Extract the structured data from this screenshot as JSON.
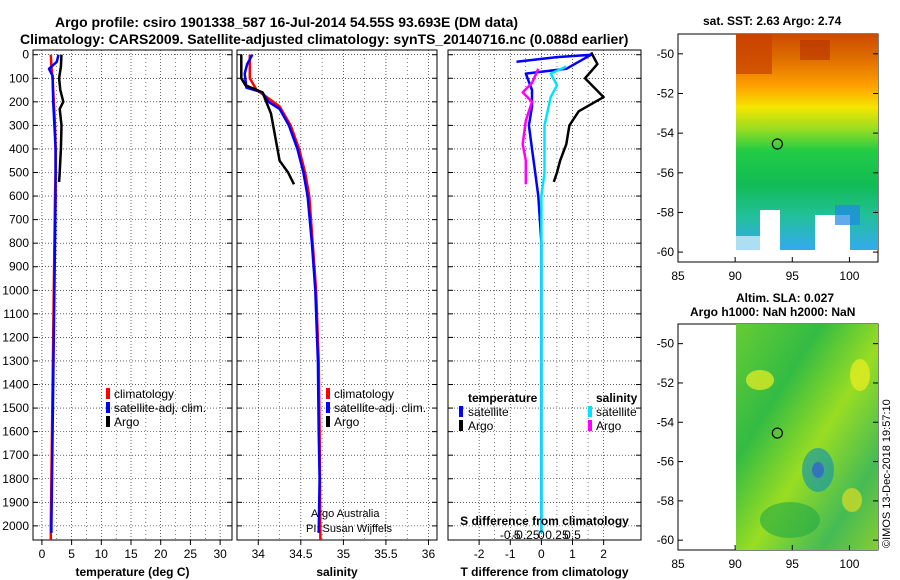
{
  "header": {
    "line1": "Argo profile: csiro 1901338_587 16-Jul-2014 54.55S 93.693E (DM data)",
    "line2": "Climatology: CARS2009. Satellite-adjusted climatology: synTS_20140716.nc (0.088d earlier)"
  },
  "depth_axis": {
    "ticks": [
      0,
      100,
      200,
      300,
      400,
      500,
      600,
      700,
      800,
      900,
      1000,
      1100,
      1200,
      1300,
      1400,
      1500,
      1600,
      1700,
      1800,
      1900,
      2000
    ],
    "range": [
      -20,
      2060
    ]
  },
  "chart_data": [
    {
      "type": "line",
      "id": "temperature",
      "xlabel": "temperature (deg C)",
      "xlim": [
        -1.5,
        32
      ],
      "xticks": [
        0,
        5,
        10,
        15,
        20,
        25,
        30
      ],
      "xtick_labels": [
        "0",
        "5",
        "10",
        "15",
        "20",
        "25",
        "30"
      ],
      "legend": [
        "climatology",
        "satellite-adj. clim.",
        "Argo"
      ],
      "series": [
        {
          "name": "climatology",
          "color": "#ff0000",
          "points": [
            [
              1.5,
              0
            ],
            [
              1.6,
              50
            ],
            [
              1.8,
              100
            ],
            [
              2.0,
              200
            ],
            [
              2.2,
              300
            ],
            [
              2.3,
              400
            ],
            [
              2.3,
              500
            ],
            [
              2.2,
              600
            ],
            [
              2.1,
              800
            ],
            [
              2.0,
              1000
            ],
            [
              1.9,
              1200
            ],
            [
              1.8,
              1400
            ],
            [
              1.7,
              1600
            ],
            [
              1.6,
              1800
            ],
            [
              1.5,
              2000
            ],
            [
              1.5,
              2060
            ]
          ]
        },
        {
          "name": "satellite-adj. clim.",
          "color": "#0000ff",
          "points": [
            [
              2.8,
              0
            ],
            [
              2.5,
              30
            ],
            [
              1.2,
              60
            ],
            [
              1.8,
              90
            ],
            [
              1.9,
              200
            ],
            [
              2.1,
              300
            ],
            [
              2.3,
              400
            ],
            [
              2.3,
              500
            ],
            [
              2.3,
              600
            ],
            [
              2.2,
              800
            ],
            [
              2.1,
              1000
            ],
            [
              2.0,
              1200
            ],
            [
              1.9,
              1400
            ],
            [
              1.8,
              1600
            ],
            [
              1.7,
              1800
            ],
            [
              1.6,
              2000
            ],
            [
              1.6,
              2030
            ]
          ]
        },
        {
          "name": "Argo",
          "color": "#000000",
          "points": [
            [
              3.3,
              0
            ],
            [
              3.2,
              50
            ],
            [
              2.9,
              100
            ],
            [
              3.1,
              150
            ],
            [
              3.6,
              200
            ],
            [
              3.0,
              230
            ],
            [
              3.3,
              300
            ],
            [
              3.2,
              400
            ],
            [
              3.0,
              500
            ],
            [
              2.9,
              540
            ]
          ]
        }
      ]
    },
    {
      "type": "line",
      "id": "salinity",
      "xlabel": "salinity",
      "xlim": [
        33.75,
        36.1
      ],
      "xticks": [
        34,
        34.5,
        35,
        35.5,
        36
      ],
      "xtick_labels": [
        "34",
        "34.5",
        "35",
        "35.5",
        "36"
      ],
      "legend": [
        "climatology",
        "satellite-adj. clim.",
        "Argo"
      ],
      "series": [
        {
          "name": "climatology",
          "color": "#ff0000",
          "points": [
            [
              33.9,
              0
            ],
            [
              33.9,
              100
            ],
            [
              33.98,
              150
            ],
            [
              34.1,
              180
            ],
            [
              34.25,
              220
            ],
            [
              34.38,
              300
            ],
            [
              34.48,
              400
            ],
            [
              34.55,
              500
            ],
            [
              34.6,
              600
            ],
            [
              34.64,
              800
            ],
            [
              34.68,
              1000
            ],
            [
              34.71,
              1300
            ],
            [
              34.72,
              1600
            ],
            [
              34.73,
              2060
            ]
          ]
        },
        {
          "name": "satellite-adj. clim.",
          "color": "#0000ff",
          "points": [
            [
              33.93,
              0
            ],
            [
              33.87,
              40
            ],
            [
              33.84,
              80
            ],
            [
              33.86,
              140
            ],
            [
              34.05,
              160
            ],
            [
              34.12,
              200
            ],
            [
              34.25,
              230
            ],
            [
              34.36,
              300
            ],
            [
              34.46,
              400
            ],
            [
              34.53,
              500
            ],
            [
              34.58,
              600
            ],
            [
              34.63,
              800
            ],
            [
              34.67,
              1000
            ],
            [
              34.7,
              1300
            ],
            [
              34.71,
              1600
            ],
            [
              34.72,
              1800
            ],
            [
              34.71,
              2030
            ]
          ]
        },
        {
          "name": "Argo",
          "color": "#000000",
          "points": [
            [
              33.8,
              0
            ],
            [
              33.8,
              50
            ],
            [
              33.8,
              100
            ],
            [
              33.85,
              130
            ],
            [
              34.05,
              160
            ],
            [
              34.15,
              250
            ],
            [
              34.2,
              350
            ],
            [
              34.25,
              450
            ],
            [
              34.35,
              500
            ],
            [
              34.42,
              550
            ]
          ]
        }
      ]
    },
    {
      "type": "line",
      "id": "difference",
      "xlabel": "T difference from climatology",
      "xlabel_top": "S difference from climatology",
      "xlim": [
        -3,
        3.2
      ],
      "xticks": [
        -2,
        -1,
        0,
        1,
        2
      ],
      "xtick_labels": [
        "-2",
        "-1",
        "0",
        "1",
        "2"
      ],
      "top_ticks": [
        -1,
        -0.5,
        0,
        0.5,
        1
      ],
      "top_tick_labels": [
        "-0.5",
        "-0.25",
        "0",
        "0.25",
        "0.5"
      ],
      "legend_left_title": "temperature",
      "legend_right_title": "salinity",
      "legend_left": [
        "satellite",
        "Argo"
      ],
      "legend_right": [
        "satellite",
        "Argo"
      ],
      "series": [
        {
          "name": "temperature satellite",
          "color": "#0000ff",
          "points": [
            [
              -0.8,
              30
            ],
            [
              0.5,
              10
            ],
            [
              1.6,
              0
            ],
            [
              0.8,
              60
            ],
            [
              -0.5,
              80
            ],
            [
              -0.3,
              150
            ],
            [
              -0.3,
              220
            ],
            [
              -0.4,
              300
            ],
            [
              -0.3,
              400
            ],
            [
              -0.2,
              500
            ],
            [
              -0.1,
              600
            ],
            [
              0,
              800
            ],
            [
              0,
              1000
            ],
            [
              0,
              1500
            ],
            [
              0,
              2030
            ]
          ]
        },
        {
          "name": "temperature Argo",
          "color": "#000000",
          "points": [
            [
              1.6,
              -10
            ],
            [
              1.8,
              40
            ],
            [
              1.4,
              100
            ],
            [
              2.0,
              180
            ],
            [
              1.2,
              240
            ],
            [
              0.9,
              300
            ],
            [
              0.8,
              380
            ],
            [
              0.6,
              450
            ],
            [
              0.5,
              500
            ],
            [
              0.4,
              540
            ]
          ]
        },
        {
          "name": "salinity satellite",
          "color": "#00e5ff",
          "points": [
            [
              0.8,
              50
            ],
            [
              0.3,
              80
            ],
            [
              0.5,
              130
            ],
            [
              0.3,
              180
            ],
            [
              0.1,
              300
            ],
            [
              0.1,
              500
            ],
            [
              0,
              600
            ],
            [
              0,
              800
            ],
            [
              0,
              1000
            ],
            [
              0,
              1500
            ],
            [
              0,
              2030
            ]
          ]
        },
        {
          "name": "salinity Argo",
          "color": "#ff00ff",
          "points": [
            [
              -0.1,
              60
            ],
            [
              -0.3,
              120
            ],
            [
              -0.6,
              160
            ],
            [
              -0.3,
              200
            ],
            [
              -0.5,
              280
            ],
            [
              -0.6,
              380
            ],
            [
              -0.5,
              450
            ],
            [
              -0.5,
              550
            ]
          ]
        }
      ]
    }
  ],
  "footer_credit": {
    "line1": "Argo Australia",
    "line2": "PI: Susan Wijffels"
  },
  "maps": {
    "sst": {
      "title": "sat. SST: 2.63 Argo: 2.74"
    },
    "sla": {
      "title1": "Altim. SLA: 0.027",
      "title2": "Argo h1000: NaN h2000: NaN"
    },
    "yticks": [
      -50,
      -52,
      -54,
      -56,
      -58,
      -60
    ],
    "xticks": [
      85,
      90,
      95,
      100
    ],
    "float_position": {
      "lon": 93.693,
      "lat": -54.55
    }
  },
  "watermark": "©IMOS 13-Dec-2018 19:57:10"
}
